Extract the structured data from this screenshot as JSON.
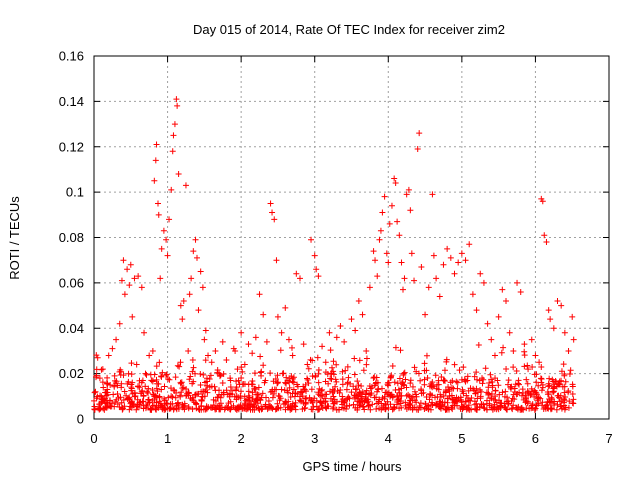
{
  "chart_data": {
    "type": "scatter",
    "title": "Day 015 of 2014, Rate Of TEC Index for receiver zim2",
    "xlabel": "GPS time / hours",
    "ylabel": "ROTI / TECUs",
    "xlim": [
      0,
      7
    ],
    "ylim": [
      0,
      0.16
    ],
    "xticks": [
      0,
      1,
      2,
      3,
      4,
      5,
      6,
      7
    ],
    "yticks": [
      0,
      0.02,
      0.04,
      0.06,
      0.08,
      0.1,
      0.12,
      0.14,
      0.16
    ],
    "xtick_labels": [
      "0",
      "1",
      "2",
      "3",
      "4",
      "5",
      "6",
      "7"
    ],
    "ytick_labels": [
      "0",
      "0.02",
      "0.04",
      "0.06",
      "0.08",
      "0.1",
      "0.12",
      "0.14",
      "0.16"
    ],
    "grid": true,
    "marker": "+",
    "marker_color": "#ff0000",
    "series": [
      {
        "name": "ROTI",
        "points": [
          [
            0.02,
            0.012
          ],
          [
            0.05,
            0.027
          ],
          [
            0.08,
            0.018
          ],
          [
            0.1,
            0.01
          ],
          [
            0.12,
            0.022
          ],
          [
            0.15,
            0.009
          ],
          [
            0.18,
            0.013
          ],
          [
            0.2,
            0.028
          ],
          [
            0.22,
            0.015
          ],
          [
            0.25,
            0.031
          ],
          [
            0.28,
            0.019
          ],
          [
            0.3,
            0.035
          ],
          [
            0.32,
            0.011
          ],
          [
            0.35,
            0.042
          ],
          [
            0.38,
            0.061
          ],
          [
            0.4,
            0.07
          ],
          [
            0.42,
            0.055
          ],
          [
            0.45,
            0.066
          ],
          [
            0.48,
            0.059
          ],
          [
            0.5,
            0.068
          ],
          [
            0.52,
            0.045
          ],
          [
            0.55,
            0.062
          ],
          [
            0.58,
            0.024
          ],
          [
            0.6,
            0.063
          ],
          [
            0.62,
            0.014
          ],
          [
            0.65,
            0.058
          ],
          [
            0.68,
            0.038
          ],
          [
            0.7,
            0.02
          ],
          [
            0.72,
            0.012
          ],
          [
            0.75,
            0.028
          ],
          [
            0.78,
            0.017
          ],
          [
            0.8,
            0.03
          ],
          [
            0.82,
            0.105
          ],
          [
            0.84,
            0.114
          ],
          [
            0.85,
            0.121
          ],
          [
            0.87,
            0.095
          ],
          [
            0.88,
            0.09
          ],
          [
            0.9,
            0.062
          ],
          [
            0.92,
            0.075
          ],
          [
            0.95,
            0.083
          ],
          [
            0.98,
            0.079
          ],
          [
            1.0,
            0.072
          ],
          [
            1.02,
            0.088
          ],
          [
            1.05,
            0.101
          ],
          [
            1.07,
            0.118
          ],
          [
            1.08,
            0.125
          ],
          [
            1.1,
            0.13
          ],
          [
            1.12,
            0.141
          ],
          [
            1.13,
            0.138
          ],
          [
            1.15,
            0.108
          ],
          [
            1.18,
            0.05
          ],
          [
            1.2,
            0.044
          ],
          [
            1.22,
            0.052
          ],
          [
            1.25,
            0.103
          ],
          [
            1.28,
            0.03
          ],
          [
            1.3,
            0.055
          ],
          [
            1.32,
            0.062
          ],
          [
            1.35,
            0.074
          ],
          [
            1.38,
            0.079
          ],
          [
            1.4,
            0.071
          ],
          [
            1.42,
            0.048
          ],
          [
            1.45,
            0.065
          ],
          [
            1.48,
            0.058
          ],
          [
            1.5,
            0.035
          ],
          [
            1.52,
            0.039
          ],
          [
            1.55,
            0.028
          ],
          [
            1.6,
            0.025
          ],
          [
            1.65,
            0.03
          ],
          [
            1.7,
            0.02
          ],
          [
            1.75,
            0.034
          ],
          [
            1.8,
            0.026
          ],
          [
            1.85,
            0.018
          ],
          [
            1.9,
            0.031
          ],
          [
            1.95,
            0.022
          ],
          [
            2.0,
            0.038
          ],
          [
            2.05,
            0.024
          ],
          [
            2.1,
            0.033
          ],
          [
            2.15,
            0.029
          ],
          [
            2.2,
            0.036
          ],
          [
            2.25,
            0.055
          ],
          [
            2.3,
            0.046
          ],
          [
            2.35,
            0.034
          ],
          [
            2.4,
            0.095
          ],
          [
            2.42,
            0.091
          ],
          [
            2.45,
            0.088
          ],
          [
            2.48,
            0.07
          ],
          [
            2.5,
            0.045
          ],
          [
            2.55,
            0.038
          ],
          [
            2.6,
            0.049
          ],
          [
            2.65,
            0.035
          ],
          [
            2.7,
            0.028
          ],
          [
            2.75,
            0.064
          ],
          [
            2.8,
            0.062
          ],
          [
            2.85,
            0.033
          ],
          [
            2.9,
            0.024
          ],
          [
            2.95,
            0.079
          ],
          [
            3.0,
            0.072
          ],
          [
            3.02,
            0.066
          ],
          [
            3.05,
            0.063
          ],
          [
            3.1,
            0.032
          ],
          [
            3.15,
            0.025
          ],
          [
            3.2,
            0.038
          ],
          [
            3.25,
            0.021
          ],
          [
            3.3,
            0.036
          ],
          [
            3.35,
            0.041
          ],
          [
            3.4,
            0.034
          ],
          [
            3.45,
            0.023
          ],
          [
            3.5,
            0.044
          ],
          [
            3.55,
            0.039
          ],
          [
            3.6,
            0.052
          ],
          [
            3.65,
            0.046
          ],
          [
            3.7,
            0.03
          ],
          [
            3.75,
            0.058
          ],
          [
            3.8,
            0.074
          ],
          [
            3.82,
            0.07
          ],
          [
            3.85,
            0.063
          ],
          [
            3.88,
            0.079
          ],
          [
            3.9,
            0.083
          ],
          [
            3.92,
            0.091
          ],
          [
            3.95,
            0.098
          ],
          [
            3.98,
            0.073
          ],
          [
            4.0,
            0.069
          ],
          [
            4.02,
            0.086
          ],
          [
            4.05,
            0.094
          ],
          [
            4.08,
            0.106
          ],
          [
            4.1,
            0.104
          ],
          [
            4.12,
            0.087
          ],
          [
            4.15,
            0.081
          ],
          [
            4.18,
            0.069
          ],
          [
            4.2,
            0.057
          ],
          [
            4.22,
            0.062
          ],
          [
            4.25,
            0.099
          ],
          [
            4.28,
            0.101
          ],
          [
            4.3,
            0.092
          ],
          [
            4.32,
            0.073
          ],
          [
            4.35,
            0.061
          ],
          [
            4.4,
            0.119
          ],
          [
            4.42,
            0.126
          ],
          [
            4.45,
            0.067
          ],
          [
            4.5,
            0.046
          ],
          [
            4.55,
            0.058
          ],
          [
            4.6,
            0.099
          ],
          [
            4.62,
            0.072
          ],
          [
            4.65,
            0.062
          ],
          [
            4.7,
            0.054
          ],
          [
            4.75,
            0.068
          ],
          [
            4.8,
            0.075
          ],
          [
            4.85,
            0.071
          ],
          [
            4.9,
            0.064
          ],
          [
            4.95,
            0.069
          ],
          [
            5.0,
            0.073
          ],
          [
            5.05,
            0.07
          ],
          [
            5.1,
            0.077
          ],
          [
            5.15,
            0.055
          ],
          [
            5.2,
            0.048
          ],
          [
            5.25,
            0.064
          ],
          [
            5.3,
            0.06
          ],
          [
            5.35,
            0.042
          ],
          [
            5.4,
            0.035
          ],
          [
            5.45,
            0.028
          ],
          [
            5.5,
            0.045
          ],
          [
            5.55,
            0.057
          ],
          [
            5.6,
            0.052
          ],
          [
            5.65,
            0.038
          ],
          [
            5.7,
            0.03
          ],
          [
            5.75,
            0.06
          ],
          [
            5.8,
            0.056
          ],
          [
            5.85,
            0.033
          ],
          [
            5.9,
            0.022
          ],
          [
            5.95,
            0.035
          ],
          [
            6.0,
            0.028
          ],
          [
            6.05,
            0.025
          ],
          [
            6.08,
            0.097
          ],
          [
            6.1,
            0.096
          ],
          [
            6.12,
            0.081
          ],
          [
            6.15,
            0.078
          ],
          [
            6.18,
            0.048
          ],
          [
            6.2,
            0.044
          ],
          [
            6.25,
            0.04
          ],
          [
            6.3,
            0.052
          ],
          [
            6.35,
            0.05
          ],
          [
            6.4,
            0.038
          ],
          [
            6.45,
            0.03
          ],
          [
            6.5,
            0.045
          ],
          [
            6.52,
            0.035
          ]
        ]
      }
    ]
  }
}
